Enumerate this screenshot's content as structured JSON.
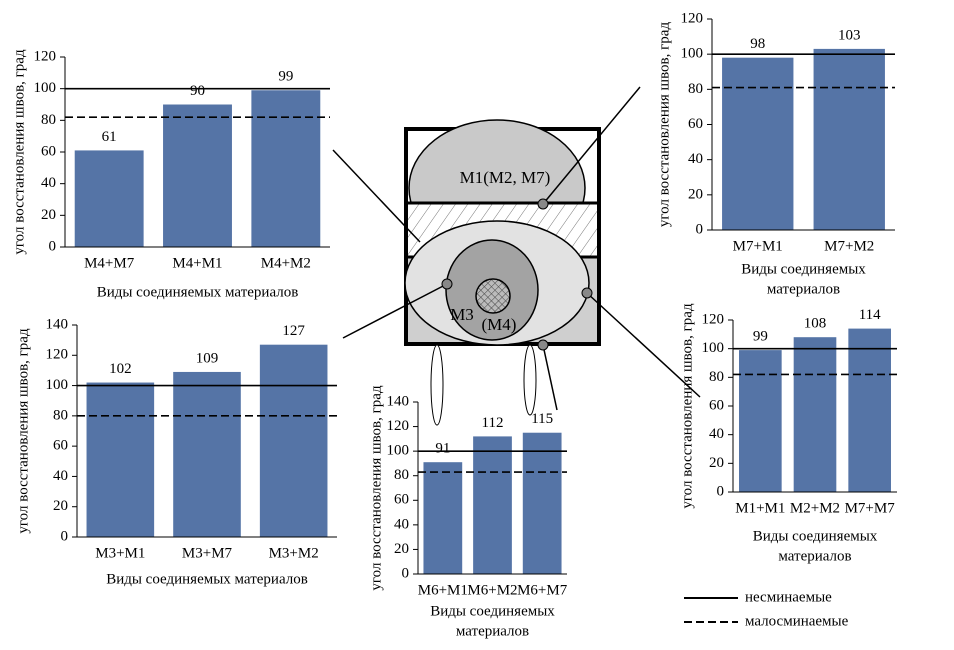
{
  "diagram": {
    "labels": [
      "M1(M2, M7)",
      "M3",
      "(M4)"
    ]
  },
  "legend": [
    {
      "name": "несминаемые",
      "style": "solid"
    },
    {
      "name": "малосминаемые",
      "style": "dashed"
    }
  ],
  "chart_data": [
    {
      "type": "bar",
      "y_label": "угол восстановления швов, град",
      "x_label": [
        "Виды соединяемых материалов"
      ],
      "categories": [
        "M4+M7",
        "M4+M1",
        "M4+M2"
      ],
      "values": [
        61,
        90,
        99
      ],
      "color": "#5574a6",
      "ylim": [
        0,
        120
      ],
      "yticks": [
        0,
        20,
        40,
        60,
        80,
        100,
        120
      ],
      "reference_lines": [
        100,
        82
      ]
    },
    {
      "type": "bar",
      "y_label": "угол восстановления швов, град",
      "x_label": [
        "Виды соединяемых",
        "материалов"
      ],
      "categories": [
        "M7+M1",
        "M7+M2"
      ],
      "values": [
        98,
        103
      ],
      "color": "#5574a6",
      "ylim": [
        0,
        120
      ],
      "yticks": [
        0,
        20,
        40,
        60,
        80,
        100,
        120
      ],
      "reference_lines": [
        100,
        81
      ]
    },
    {
      "type": "bar",
      "y_label": "угол восстановления швов, град",
      "x_label": [
        "Виды соединяемых материалов"
      ],
      "categories": [
        "M3+M1",
        "M3+M7",
        "M3+M2"
      ],
      "values": [
        102,
        109,
        127
      ],
      "color": "#5574a6",
      "ylim": [
        0,
        140
      ],
      "yticks": [
        0,
        20,
        40,
        60,
        80,
        100,
        120,
        140
      ],
      "reference_lines": [
        100,
        80
      ]
    },
    {
      "type": "bar",
      "y_label": "угол восстановления швов, град",
      "x_label": [
        "Виды соединяемых",
        "материалов"
      ],
      "categories": [
        "M6+M1",
        "M6+M2",
        "M6+M7"
      ],
      "values": [
        91,
        112,
        115
      ],
      "color": "#5574a6",
      "ylim": [
        0,
        140
      ],
      "yticks": [
        0,
        20,
        40,
        60,
        80,
        100,
        120,
        140
      ],
      "reference_lines": [
        100,
        83
      ]
    },
    {
      "type": "bar",
      "y_label": "угол восстановления швов, град",
      "x_label": [
        "Виды соединяемых",
        "материалов"
      ],
      "categories": [
        "M1+M1",
        "M2+M2",
        "M7+M7"
      ],
      "values": [
        99,
        108,
        114
      ],
      "color": "#5574a6",
      "ylim": [
        0,
        120
      ],
      "yticks": [
        0,
        20,
        40,
        60,
        80,
        100,
        120
      ],
      "reference_lines": [
        100,
        82
      ]
    }
  ]
}
